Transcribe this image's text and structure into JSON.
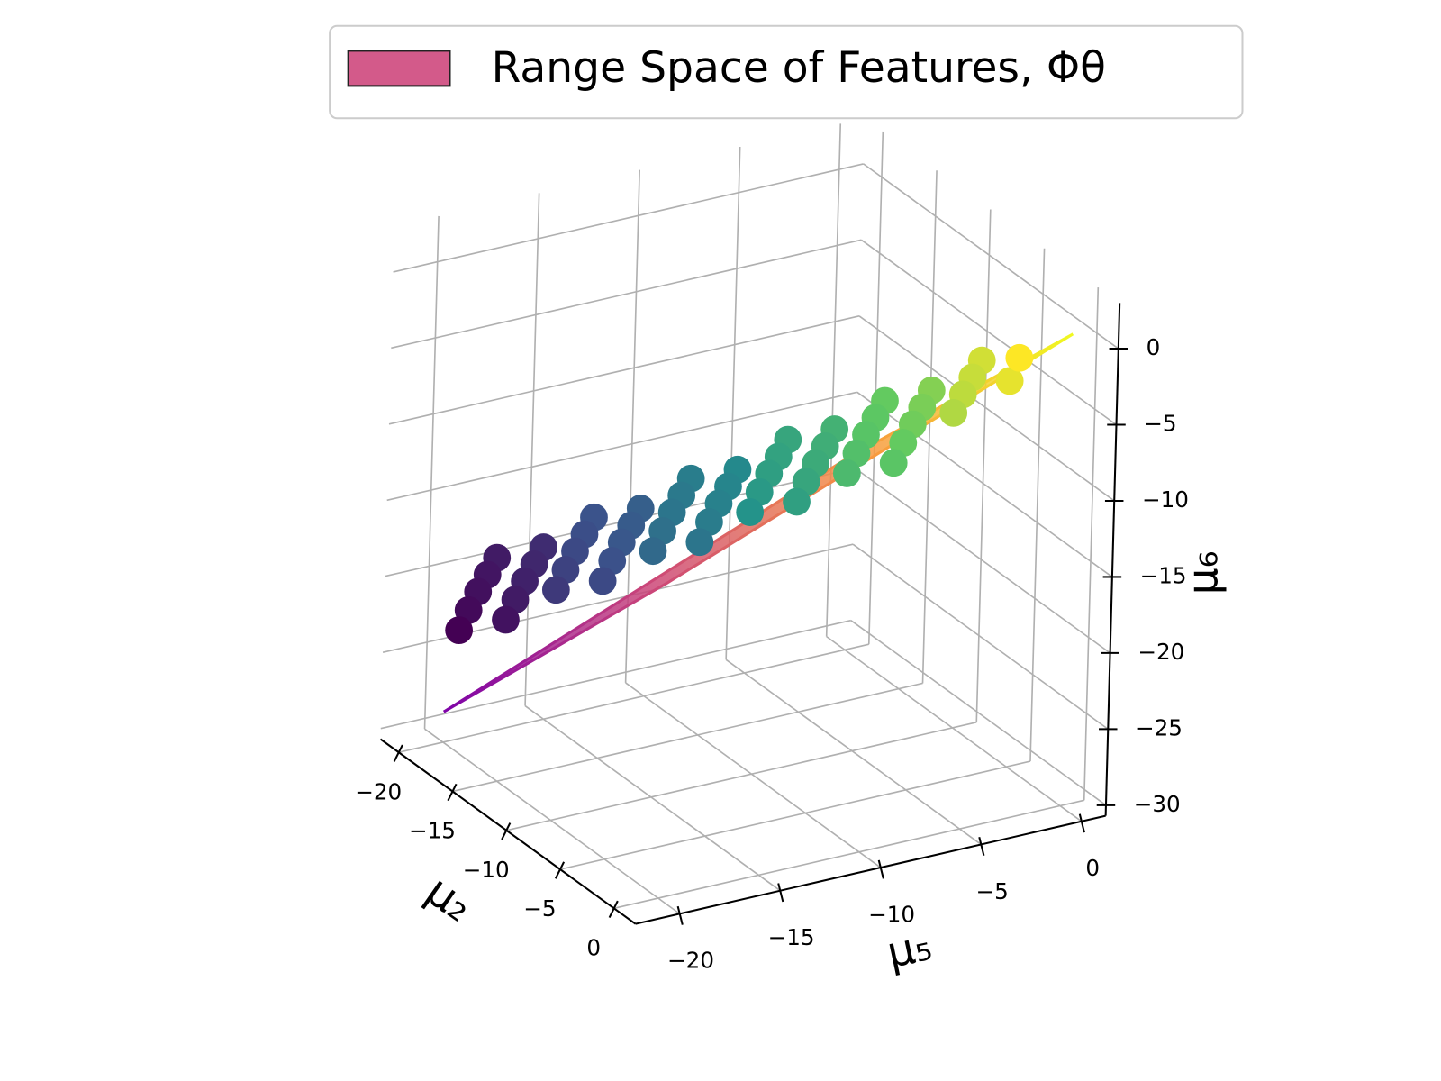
{
  "chart_data": {
    "type": "scatter3d",
    "xlabel": "μ₂",
    "ylabel": "μ₅",
    "zlabel": "μ₆",
    "xlim": [
      -21.7,
      2
    ],
    "ylim": [
      -22.2,
      1.2
    ],
    "zlim": [
      -30.7,
      3
    ],
    "xticks": [
      {
        "value": -20,
        "label": "−20"
      },
      {
        "value": -15,
        "label": "−15"
      },
      {
        "value": -10,
        "label": "−10"
      },
      {
        "value": -5,
        "label": "−5"
      },
      0
    ],
    "yticks": [
      {
        "value": -20,
        "label": "−20"
      },
      {
        "value": -15,
        "label": "−15"
      },
      {
        "value": -10,
        "label": "−10"
      },
      {
        "value": -5,
        "label": "−5"
      },
      0
    ],
    "zticks": [
      {
        "value": -30,
        "label": "−30"
      },
      {
        "value": -25,
        "label": "−25"
      },
      {
        "value": -20,
        "label": "−20"
      },
      {
        "value": -15,
        "label": "−15"
      },
      {
        "value": -10,
        "label": "−10"
      },
      {
        "value": -5,
        "label": "−5"
      },
      0
    ],
    "grid": true,
    "legend": {
      "label": "Range Space of Features, Φθ",
      "color": "#d35a8a",
      "edgecolor": "#222222",
      "position": "top-right"
    },
    "surface": {
      "x": [
        -20,
        0,
        0,
        -20
      ],
      "y": [
        -20,
        -20,
        0,
        0
      ],
      "z": [
        -28.7,
        -10,
        0.3,
        -18
      ],
      "colormap": [
        "#7e03a8",
        "#cc4778",
        "#f89540",
        "#f0f921"
      ]
    },
    "points": {
      "colormap": [
        "#440154",
        "#3b528b",
        "#21918c",
        "#5ec962",
        "#fde725"
      ],
      "x": [
        -21,
        -20,
        -19,
        -18,
        -17,
        -19.5,
        -18.5,
        -17.5,
        -16.5,
        -15.5,
        -17.9,
        -16.9,
        -15.9,
        -14.9,
        -13.9,
        -16.4,
        -15.4,
        -14.4,
        -13.4,
        -12.4,
        -14.8,
        -13.8,
        -12.8,
        -11.8,
        -10.8,
        -13.3,
        -12.3,
        -11.3,
        -10.3,
        -9.3,
        -11.7,
        -10.7,
        -9.7,
        -8.7,
        -7.7,
        -10.2,
        -9.2,
        -8.2,
        -7.2,
        -6.2,
        -8.6,
        -7.6,
        -6.6,
        -5.6,
        -4.6,
        -7.1,
        -6.1,
        -5.1,
        -4.1,
        -3.1,
        -5.5,
        -4.5,
        -3.5,
        -2.5,
        -2,
        -3
      ],
      "y": [
        -17,
        -18,
        -19,
        -20,
        -21,
        -15.5,
        -16.5,
        -17.5,
        -18.5,
        -19.5,
        -13.9,
        -14.9,
        -15.9,
        -16.9,
        -17.9,
        -12.4,
        -13.4,
        -14.4,
        -15.4,
        -16.4,
        -10.8,
        -11.8,
        -12.8,
        -13.8,
        -14.8,
        -9.3,
        -10.3,
        -11.3,
        -12.3,
        -13.3,
        -7.7,
        -8.7,
        -9.7,
        -10.7,
        -11.7,
        -6.2,
        -7.2,
        -8.2,
        -9.2,
        -10.2,
        -4.6,
        -5.6,
        -6.6,
        -7.6,
        -8.6,
        -3.1,
        -4.1,
        -5.1,
        -6.1,
        -7.1,
        -1.5,
        -2.5,
        -3.5,
        -4.5,
        -2,
        -1
      ],
      "z": [
        -20.0,
        -20.3,
        -20.6,
        -21.0,
        -21.5,
        -19.0,
        -19.3,
        -19.6,
        -20.0,
        -20.5,
        -16.7,
        -17.0,
        -17.3,
        -17.7,
        -18.2,
        -15.8,
        -16.1,
        -16.4,
        -16.8,
        -17.3,
        -13.5,
        -13.8,
        -14.1,
        -14.5,
        -15.0,
        -12.6,
        -12.9,
        -13.2,
        -13.6,
        -14.1,
        -10.3,
        -10.6,
        -10.9,
        -11.3,
        -11.8,
        -9.3,
        -9.6,
        -9.9,
        -10.3,
        -10.8,
        -7.1,
        -7.4,
        -7.7,
        -8.1,
        -8.6,
        -6.1,
        -6.4,
        -6.7,
        -7.1,
        -7.6,
        -3.8,
        -4.1,
        -4.4,
        -4.8,
        -3.2,
        -2.5
      ]
    }
  }
}
